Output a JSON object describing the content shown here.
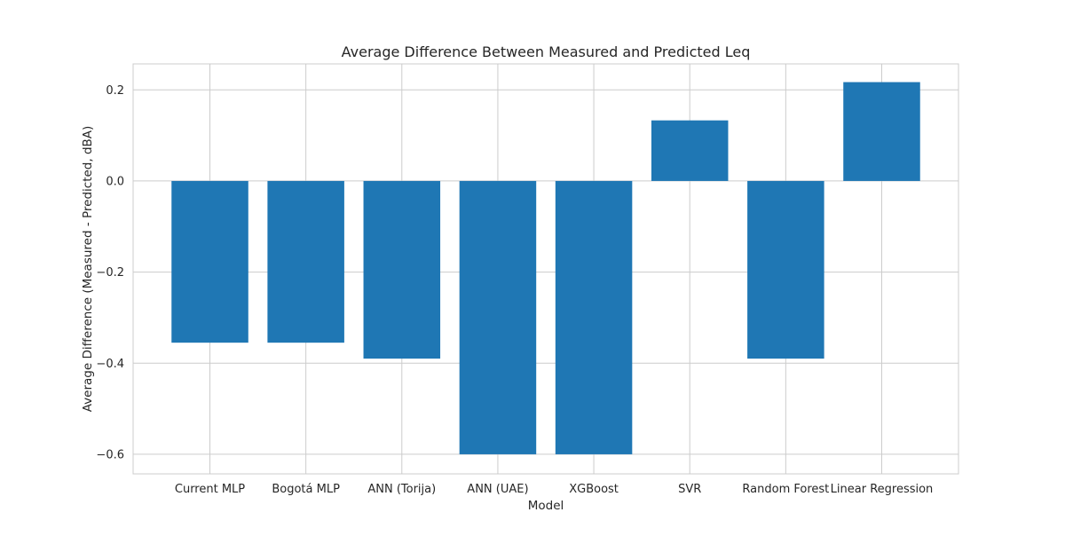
{
  "chart_data": {
    "type": "bar",
    "title": "Average Difference Between Measured and Predicted Leq",
    "xlabel": "Model",
    "ylabel": "Average Difference (Measured - Predicted, dBA)",
    "categories": [
      "Current MLP",
      "Bogotá MLP",
      "ANN (Torija)",
      "ANN (UAE)",
      "XGBoost",
      "SVR",
      "Random Forest",
      "Linear Regression"
    ],
    "values": [
      -0.355,
      -0.355,
      -0.39,
      -0.6,
      -0.6,
      0.133,
      -0.39,
      0.217
    ],
    "ylim": [
      -0.643,
      0.257
    ],
    "yticks": [
      -0.6,
      -0.4,
      -0.2,
      0.0,
      0.2
    ],
    "ytick_labels": [
      "−0.6",
      "−0.4",
      "−0.2",
      "0.0",
      "0.2"
    ],
    "grid": true,
    "bar_color": "#1f77b4",
    "grid_color": "#cccccc",
    "axis_color": "#cccccc"
  }
}
